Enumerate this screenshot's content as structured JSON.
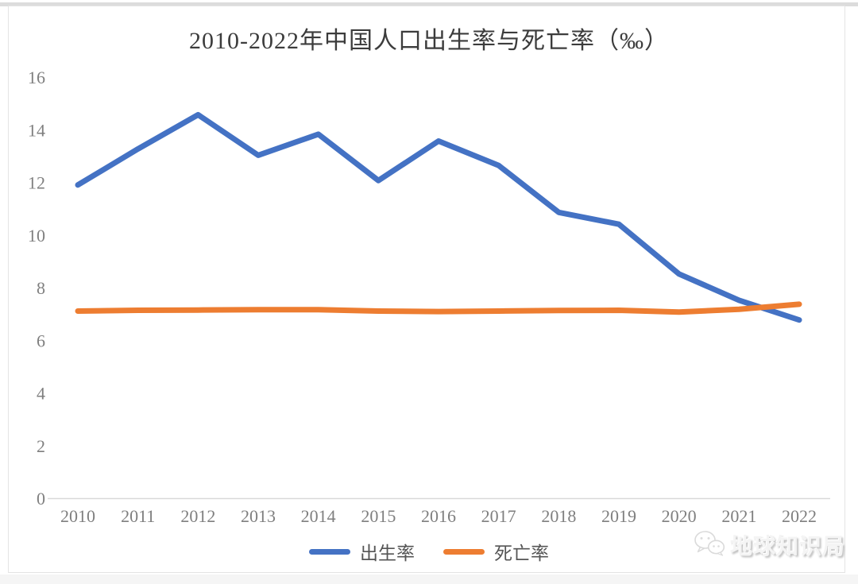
{
  "chart_data": {
    "type": "line",
    "title": "2010-2022年中国人口出生率与死亡率（‰）",
    "categories": [
      "2010",
      "2011",
      "2012",
      "2013",
      "2014",
      "2015",
      "2016",
      "2017",
      "2018",
      "2019",
      "2020",
      "2021",
      "2022"
    ],
    "series": [
      {
        "name": "出生率",
        "slug": "birth-rate",
        "color": "#4472C4",
        "values": [
          11.9,
          13.27,
          14.57,
          13.03,
          13.83,
          12.07,
          13.57,
          12.64,
          10.86,
          10.41,
          8.52,
          7.52,
          6.77
        ]
      },
      {
        "name": "死亡率",
        "slug": "death-rate",
        "color": "#ED7D31",
        "values": [
          7.11,
          7.14,
          7.15,
          7.16,
          7.16,
          7.11,
          7.09,
          7.11,
          7.13,
          7.14,
          7.07,
          7.18,
          7.37
        ]
      }
    ],
    "ylim": [
      0,
      16
    ],
    "yticks": [
      "16",
      "14",
      "12",
      "10",
      "8",
      "6",
      "4",
      "2",
      "0"
    ],
    "ytick_values": [
      16,
      14,
      12,
      10,
      8,
      6,
      4,
      2,
      0
    ],
    "grid": false,
    "legend_position": "bottom"
  },
  "colors": {
    "axis_line": "#d9d9d9",
    "tick_label": "#7f7f7f",
    "title_text": "#3c3c3c",
    "frame_border": "#e4e4e4",
    "watermark_text": "#f4f4f4"
  },
  "watermark": {
    "text": "地球知识局",
    "icon": "wechat-icon"
  }
}
